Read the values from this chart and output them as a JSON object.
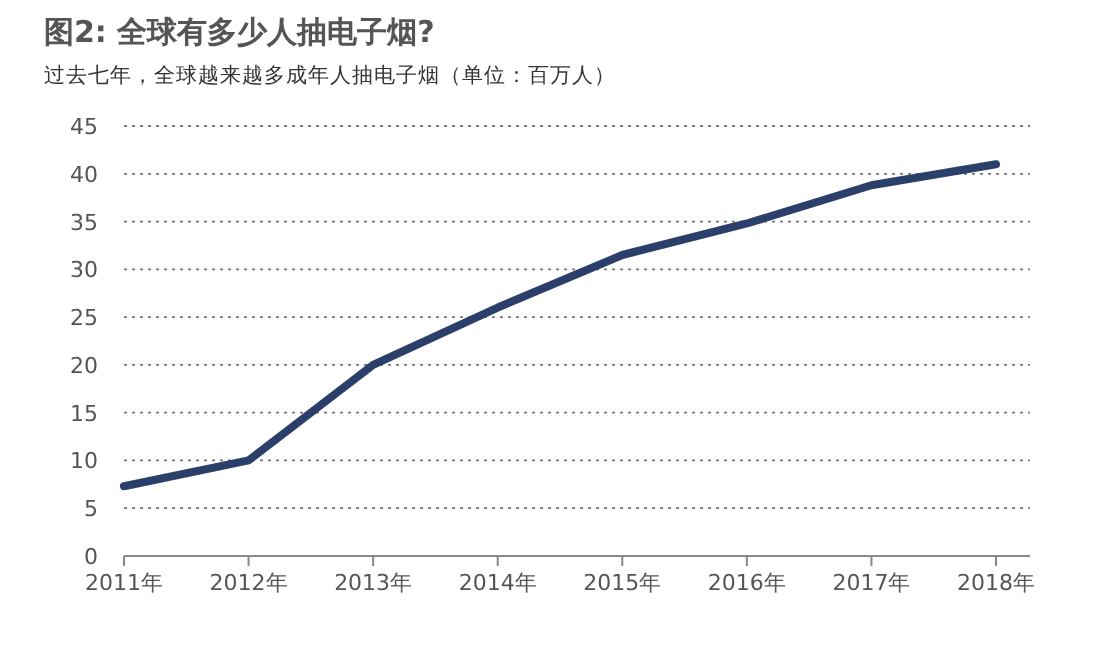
{
  "chart_data": {
    "type": "line",
    "title": "图2: 全球有多少人抽电子烟?",
    "subtitle": "过去七年，全球越来越多成年人抽电子烟（单位：百万人）",
    "categories": [
      "2011年",
      "2012年",
      "2013年",
      "2014年",
      "2015年",
      "2016年",
      "2017年",
      "2018年"
    ],
    "series": [
      {
        "color": "#2b3f6b",
        "values": [
          7.3,
          10,
          20,
          26,
          31.5,
          34.8,
          38.8,
          41
        ]
      }
    ],
    "ylim": [
      0,
      45
    ],
    "yticks": [
      0,
      5,
      10,
      15,
      20,
      25,
      30,
      35,
      40,
      45
    ],
    "grid": "y",
    "marker": "none",
    "line_style": "solid"
  }
}
